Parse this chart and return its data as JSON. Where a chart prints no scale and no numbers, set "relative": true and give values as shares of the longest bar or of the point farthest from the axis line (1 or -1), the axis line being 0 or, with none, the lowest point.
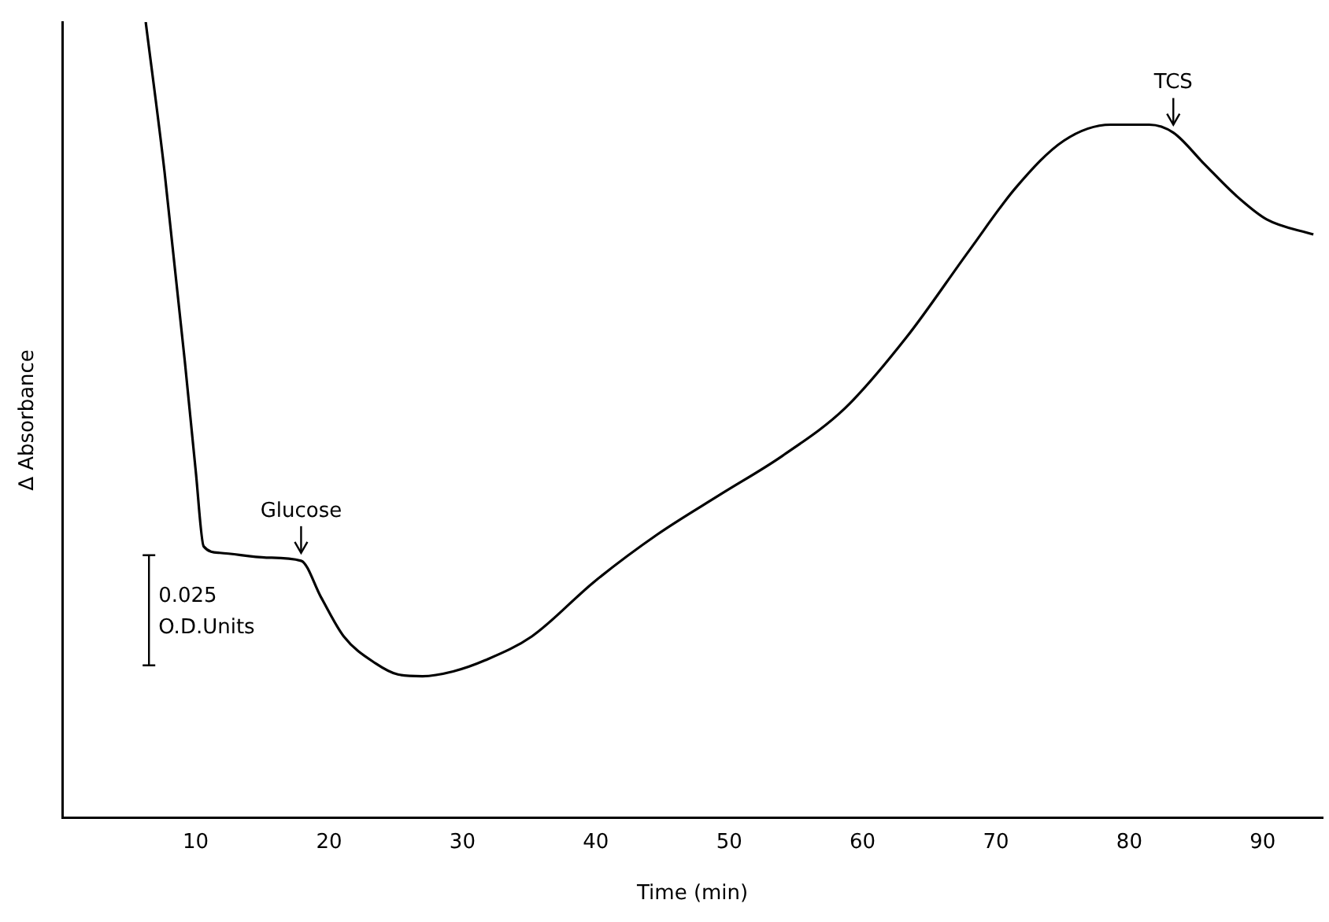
{
  "chart_data": {
    "type": "line",
    "relative": true,
    "xlabel": "Time (min)",
    "ylabel": "∆ Absorbance",
    "color": "#000000",
    "xlim": [
      0,
      94.5
    ],
    "xticks": [
      10,
      20,
      30,
      40,
      50,
      60,
      70,
      80,
      90
    ],
    "grid": false,
    "legend": false,
    "marker": "none",
    "line_style": "solid",
    "x": [
      6.25,
      7.66,
      9.18,
      10,
      10.6,
      11.8,
      15.3,
      17.9,
      19.4,
      21.1,
      23.5,
      25.2,
      27.0,
      29.3,
      31.7,
      35.2,
      39.9,
      44.6,
      49.3,
      54.0,
      58.7,
      63.3,
      68.0,
      71.5,
      75.1,
      78.6,
      81.5,
      83.3,
      85.6,
      88.0,
      90.3,
      93.8
    ],
    "values": [
      1.0,
      0.812,
      0.574,
      0.436,
      0.341,
      0.333,
      0.327,
      0.323,
      0.277,
      0.228,
      0.194,
      0.18,
      0.178,
      0.184,
      0.198,
      0.228,
      0.297,
      0.356,
      0.406,
      0.455,
      0.515,
      0.604,
      0.713,
      0.792,
      0.851,
      0.871,
      0.871,
      0.861,
      0.822,
      0.782,
      0.752,
      0.733
    ],
    "annotations": [
      {
        "text": "Glucose",
        "x": 17.9,
        "y": 0.323
      },
      {
        "text": "TCS",
        "x": 83.3,
        "y": 0.861
      },
      "0.025 O.D.Units"
    ]
  }
}
